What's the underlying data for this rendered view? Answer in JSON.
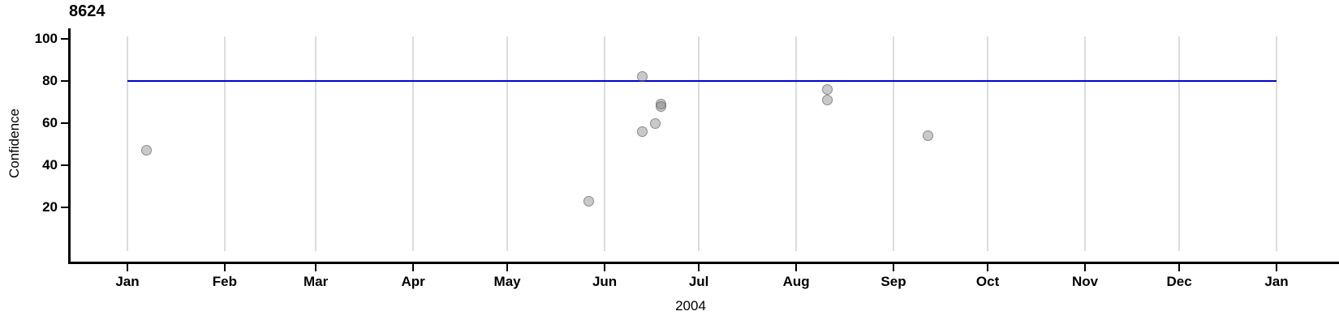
{
  "chart_data": {
    "type": "scatter",
    "title": "8624",
    "ylabel": "Confidence",
    "xlabel": "2004",
    "x_axis": {
      "tick_labels": [
        "Jan",
        "Feb",
        "Mar",
        "Apr",
        "May",
        "Jun",
        "Jul",
        "Aug",
        "Sep",
        "Oct",
        "Nov",
        "Dec",
        "Jan"
      ],
      "tick_day_of_year": [
        1,
        32,
        61,
        92,
        122,
        153,
        183,
        214,
        245,
        275,
        306,
        336,
        367
      ],
      "domain_day_of_year": [
        1,
        367
      ],
      "year": "2004"
    },
    "y_axis": {
      "ticks": [
        100,
        80,
        60,
        40,
        20
      ],
      "range_hint": [
        0,
        104
      ]
    },
    "reference_line": {
      "y": 80,
      "color": "#0000cd",
      "span_day_of_year": [
        1,
        367
      ]
    },
    "points": [
      {
        "date": "2004-01-07",
        "day_of_year": 7,
        "confidence": 47
      },
      {
        "date": "2004-05-27",
        "day_of_year": 148,
        "confidence": 23
      },
      {
        "date": "2004-06-13",
        "day_of_year": 165,
        "confidence": 82
      },
      {
        "date": "2004-06-13",
        "day_of_year": 165,
        "confidence": 56
      },
      {
        "date": "2004-06-17",
        "day_of_year": 169,
        "confidence": 60
      },
      {
        "date": "2004-06-19",
        "day_of_year": 171,
        "confidence": 69
      },
      {
        "date": "2004-06-19",
        "day_of_year": 171,
        "confidence": 68
      },
      {
        "date": "2004-08-11",
        "day_of_year": 224,
        "confidence": 76
      },
      {
        "date": "2004-08-11",
        "day_of_year": 224,
        "confidence": 71
      },
      {
        "date": "2004-09-12",
        "day_of_year": 256,
        "confidence": 54
      }
    ],
    "style": {
      "point_fill": "#c9c9c9",
      "point_stroke": "#9a9a9a",
      "gridline_color": "#dcdcdc",
      "axis_color": "#000000",
      "grid": "vertical-only",
      "legend": "none"
    }
  }
}
